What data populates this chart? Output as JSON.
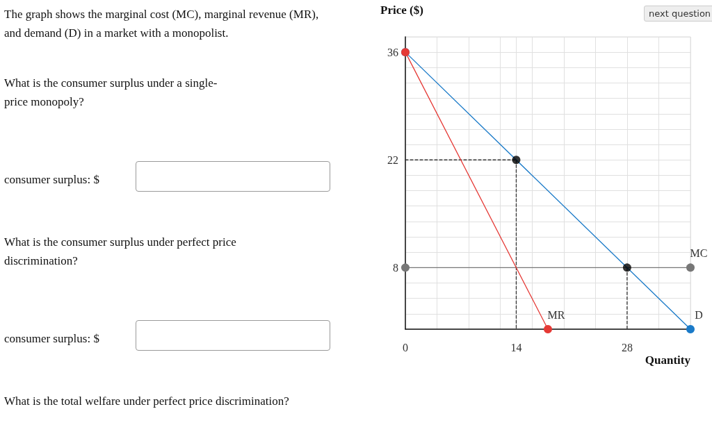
{
  "chart_data": {
    "type": "line",
    "title": "The graph shows the marginal cost (MC), marginal revenue (MR), and demand (D) in a market with a monopolist.",
    "annotations": [
      "What is the consumer surplus under a single-price monopoly?",
      "consumer surplus: $",
      "What is the consumer surplus under perfect price discrimination?",
      "consumer surplus: $",
      "What is the total welfare under perfect price discrimination?",
      "next question"
    ],
    "xlabel": "Quantity",
    "ylabel": "Price ($)",
    "xlim": [
      0,
      36
    ],
    "ylim": [
      0,
      38
    ],
    "xticks": [
      0,
      {
        "value": 4,
        "label": null
      },
      {
        "value": 8,
        "label": null
      },
      {
        "value": 12,
        "label": null
      },
      14,
      {
        "value": 16,
        "label": null
      },
      {
        "value": 20,
        "label": null
      },
      {
        "value": 24,
        "label": null
      },
      28,
      {
        "value": 32,
        "label": null
      },
      {
        "value": 36,
        "label": null
      }
    ],
    "yticks": [
      {
        "value": 0,
        "label": null
      },
      {
        "value": 2,
        "label": null
      },
      {
        "value": 4,
        "label": null
      },
      {
        "value": 6,
        "label": null
      },
      8,
      {
        "value": 10,
        "label": null
      },
      {
        "value": 12,
        "label": null
      },
      {
        "value": 14,
        "label": null
      },
      {
        "value": 16,
        "label": null
      },
      {
        "value": 18,
        "label": null
      },
      {
        "value": 20,
        "label": null
      },
      22,
      {
        "value": 24,
        "label": null
      },
      {
        "value": 26,
        "label": null
      },
      {
        "value": 28,
        "label": null
      },
      {
        "value": 30,
        "label": null
      },
      {
        "value": 32,
        "label": null
      },
      {
        "value": 34,
        "label": null
      },
      36,
      {
        "value": 38,
        "label": null
      }
    ],
    "grid": true,
    "legend": false,
    "series": [
      {
        "x": [
          0,
          14
        ],
        "values": [
          22,
          22
        ],
        "color": "#333333",
        "line_style": "dashed",
        "marker": "none"
      },
      {
        "x": [
          14,
          14
        ],
        "values": [
          22,
          0
        ],
        "color": "#333333",
        "line_style": "dashed",
        "marker": "none"
      },
      {
        "x": [
          28,
          28
        ],
        "values": [
          8,
          0
        ],
        "color": "#333333",
        "line_style": "dashed",
        "marker": "none"
      },
      {
        "name": "MC",
        "x": [
          0,
          36
        ],
        "values": [
          8,
          8
        ],
        "color": "#777777",
        "line_style": "solid",
        "marker": "circle"
      },
      {
        "name": "D",
        "x": [
          0,
          36
        ],
        "values": [
          36,
          0
        ],
        "color": "#1a7ac8",
        "line_style": "solid",
        "marker": "circle"
      },
      {
        "name": "MR",
        "x": [
          0,
          18
        ],
        "values": [
          36,
          0
        ],
        "color": "#e53935",
        "line_style": "solid",
        "marker": "circle"
      },
      {
        "type": "scatter",
        "x": [
          14,
          28
        ],
        "values": [
          22,
          8
        ],
        "color": "#000000",
        "marker": "circle"
      }
    ]
  }
}
